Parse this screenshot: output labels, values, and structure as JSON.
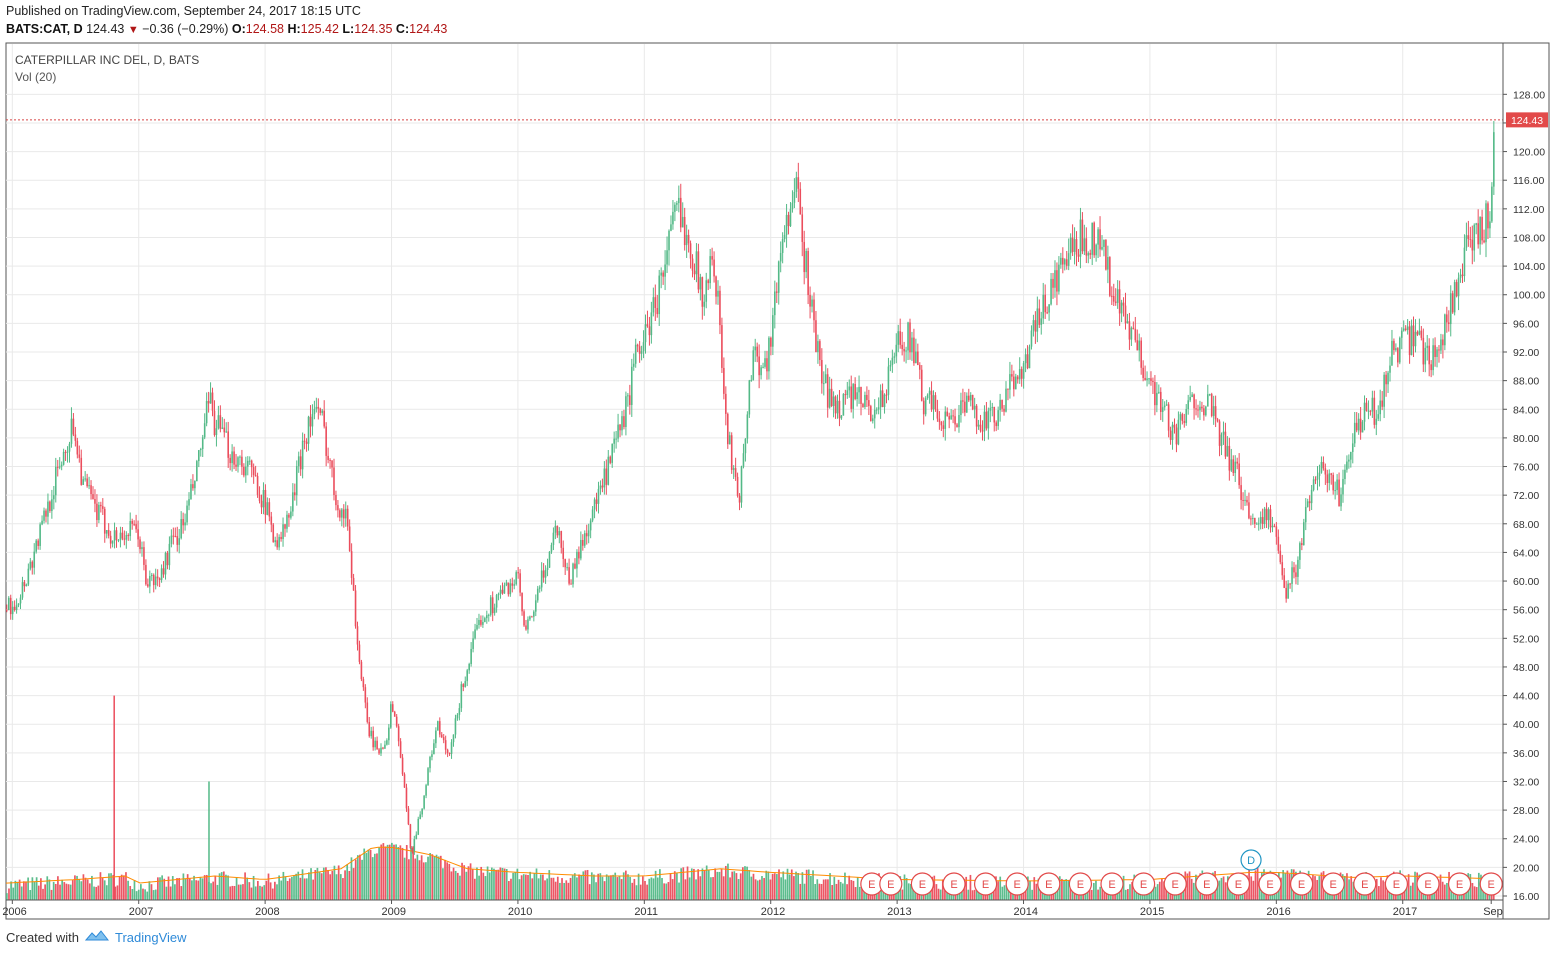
{
  "header": {
    "published": "Published on TradingView.com, September 24, 2017 18:15 UTC",
    "symbol": "BATS:CAT, D",
    "last": "124.43",
    "change": "−0.36 (−0.29%)",
    "open_label": "O:",
    "open": "124.58",
    "high_label": "H:",
    "high": "125.42",
    "low_label": "L:",
    "low": "124.35",
    "close_label": "C:",
    "close": "124.43"
  },
  "legend": {
    "title": "CATERPILLAR INC DEL, D, BATS",
    "volume": "Vol (20)"
  },
  "price_tag": "124.43",
  "footer": {
    "created_with": "Created with",
    "brand": "TradingView"
  },
  "colors": {
    "up": "#53b987",
    "down": "#eb4d5c",
    "grid": "#e9e9e9",
    "price_line": "#d64545",
    "vol_ma": "#ff8c00",
    "earnings_marker": "#e24a4a",
    "dividend_marker": "#2196c4"
  },
  "chart_data": {
    "type": "candlestick",
    "symbol": "BATS:CAT",
    "interval": "D",
    "ylim": [
      16,
      130
    ],
    "x_ticks": [
      "2006",
      "2007",
      "2008",
      "2009",
      "2010",
      "2011",
      "2012",
      "2013",
      "2014",
      "2015",
      "2016",
      "2017",
      "Sep"
    ],
    "y_ticks": [
      "16.00",
      "20.00",
      "24.00",
      "28.00",
      "32.00",
      "36.00",
      "40.00",
      "44.00",
      "48.00",
      "52.00",
      "56.00",
      "60.00",
      "64.00",
      "68.00",
      "72.00",
      "76.00",
      "80.00",
      "84.00",
      "88.00",
      "92.00",
      "96.00",
      "100.00",
      "104.00",
      "108.00",
      "112.00",
      "116.00",
      "120.00",
      "124.00",
      "128.00"
    ],
    "last_close": 124.43,
    "price_path": [
      [
        2005.95,
        56
      ],
      [
        2006.05,
        58
      ],
      [
        2006.15,
        63
      ],
      [
        2006.3,
        72
      ],
      [
        2006.4,
        78
      ],
      [
        2006.48,
        82
      ],
      [
        2006.55,
        74
      ],
      [
        2006.65,
        70
      ],
      [
        2006.8,
        66
      ],
      [
        2006.95,
        67
      ],
      [
        2007.0,
        66
      ],
      [
        2007.05,
        60
      ],
      [
        2007.15,
        60
      ],
      [
        2007.25,
        65
      ],
      [
        2007.35,
        68
      ],
      [
        2007.45,
        75
      ],
      [
        2007.55,
        85
      ],
      [
        2007.6,
        82
      ],
      [
        2007.72,
        78
      ],
      [
        2007.85,
        76
      ],
      [
        2007.95,
        73
      ],
      [
        2008.0,
        70
      ],
      [
        2008.1,
        65
      ],
      [
        2008.2,
        70
      ],
      [
        2008.3,
        80
      ],
      [
        2008.38,
        84
      ],
      [
        2008.45,
        82
      ],
      [
        2008.55,
        72
      ],
      [
        2008.65,
        68
      ],
      [
        2008.72,
        52
      ],
      [
        2008.8,
        40
      ],
      [
        2008.88,
        36
      ],
      [
        2008.95,
        38
      ],
      [
        2009.0,
        43
      ],
      [
        2009.05,
        38
      ],
      [
        2009.15,
        22
      ],
      [
        2009.25,
        30
      ],
      [
        2009.35,
        40
      ],
      [
        2009.45,
        35
      ],
      [
        2009.55,
        45
      ],
      [
        2009.7,
        55
      ],
      [
        2009.85,
        58
      ],
      [
        2009.95,
        60
      ],
      [
        2010.0,
        60
      ],
      [
        2010.05,
        52
      ],
      [
        2010.15,
        58
      ],
      [
        2010.3,
        68
      ],
      [
        2010.4,
        60
      ],
      [
        2010.55,
        68
      ],
      [
        2010.7,
        75
      ],
      [
        2010.85,
        84
      ],
      [
        2010.95,
        93
      ],
      [
        2011.0,
        94
      ],
      [
        2011.1,
        100
      ],
      [
        2011.25,
        112
      ],
      [
        2011.35,
        108
      ],
      [
        2011.45,
        100
      ],
      [
        2011.55,
        105
      ],
      [
        2011.65,
        80
      ],
      [
        2011.75,
        72
      ],
      [
        2011.85,
        92
      ],
      [
        2011.95,
        90
      ],
      [
        2012.0,
        95
      ],
      [
        2012.1,
        110
      ],
      [
        2012.2,
        114
      ],
      [
        2012.3,
        100
      ],
      [
        2012.4,
        88
      ],
      [
        2012.5,
        84
      ],
      [
        2012.6,
        86
      ],
      [
        2012.7,
        85
      ],
      [
        2012.8,
        84
      ],
      [
        2012.9,
        86
      ],
      [
        2012.95,
        90
      ],
      [
        2013.0,
        94
      ],
      [
        2013.1,
        94
      ],
      [
        2013.2,
        85
      ],
      [
        2013.3,
        84
      ],
      [
        2013.4,
        82
      ],
      [
        2013.5,
        84
      ],
      [
        2013.6,
        84
      ],
      [
        2013.7,
        82
      ],
      [
        2013.8,
        83
      ],
      [
        2013.95,
        90
      ],
      [
        2014.0,
        90
      ],
      [
        2014.1,
        96
      ],
      [
        2014.2,
        100
      ],
      [
        2014.3,
        104
      ],
      [
        2014.45,
        108
      ],
      [
        2014.6,
        108
      ],
      [
        2014.7,
        100
      ],
      [
        2014.8,
        96
      ],
      [
        2014.9,
        92
      ],
      [
        2015.0,
        88
      ],
      [
        2015.1,
        84
      ],
      [
        2015.2,
        80
      ],
      [
        2015.35,
        86
      ],
      [
        2015.45,
        85
      ],
      [
        2015.55,
        80
      ],
      [
        2015.7,
        74
      ],
      [
        2015.8,
        68
      ],
      [
        2015.9,
        70
      ],
      [
        2016.0,
        66
      ],
      [
        2016.05,
        58
      ],
      [
        2016.15,
        62
      ],
      [
        2016.3,
        76
      ],
      [
        2016.4,
        74
      ],
      [
        2016.5,
        72
      ],
      [
        2016.6,
        80
      ],
      [
        2016.72,
        84
      ],
      [
        2016.8,
        83
      ],
      [
        2016.9,
        92
      ],
      [
        2017.0,
        93
      ],
      [
        2017.1,
        94
      ],
      [
        2017.2,
        91
      ],
      [
        2017.3,
        94
      ],
      [
        2017.4,
        100
      ],
      [
        2017.5,
        106
      ],
      [
        2017.6,
        108
      ],
      [
        2017.68,
        112
      ],
      [
        2017.72,
        122
      ],
      [
        2017.73,
        124.43
      ]
    ],
    "volume_path": [
      [
        2005.95,
        17
      ],
      [
        2006.5,
        17.5
      ],
      [
        2006.9,
        18
      ],
      [
        2007.0,
        17
      ],
      [
        2007.6,
        18
      ],
      [
        2008.0,
        17.5
      ],
      [
        2008.6,
        19
      ],
      [
        2008.85,
        22
      ],
      [
        2009.0,
        22
      ],
      [
        2009.3,
        21
      ],
      [
        2009.6,
        19
      ],
      [
        2010.0,
        18.5
      ],
      [
        2010.6,
        18
      ],
      [
        2011.0,
        18
      ],
      [
        2011.6,
        19
      ],
      [
        2012.0,
        18.5
      ],
      [
        2012.5,
        18
      ],
      [
        2013.0,
        17.5
      ],
      [
        2014.0,
        17.3
      ],
      [
        2015.0,
        17.5
      ],
      [
        2015.8,
        18.5
      ],
      [
        2016.0,
        18.5
      ],
      [
        2016.6,
        17.8
      ],
      [
        2017.0,
        18
      ],
      [
        2017.73,
        17.6
      ]
    ],
    "volume_spikes": [
      [
        2006.8,
        44
      ],
      [
        2007.55,
        32
      ]
    ],
    "earnings_markers": [
      "2012.8",
      "2012.95",
      "2013.2",
      "2013.45",
      "2013.7",
      "2013.95",
      "2014.2",
      "2014.45",
      "2014.7",
      "2014.95",
      "2015.2",
      "2015.45",
      "2015.7",
      "2015.95",
      "2016.2",
      "2016.45",
      "2016.7",
      "2016.95",
      "2017.2",
      "2017.45",
      "2017.7"
    ],
    "dividend_marker_year": 2015.8,
    "dividend_marker_label": "D",
    "earnings_marker_label": "E"
  }
}
